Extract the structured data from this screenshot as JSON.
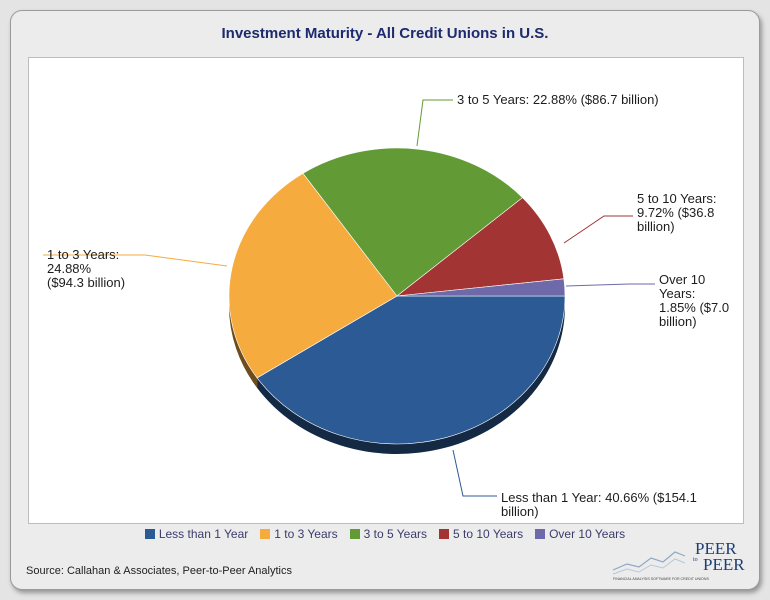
{
  "chart_data": {
    "type": "pie",
    "title": "Investment Maturity - All Credit Unions in U.S.",
    "series": [
      {
        "name": "Investment Maturity",
        "slices": [
          {
            "label": "Less than 1 Year",
            "percent": 40.66,
            "value_billion": 154.1,
            "color": "#2c5a94",
            "annotation": [
              "Less than 1 Year: 40.66% ($154.1",
              "billion)"
            ]
          },
          {
            "label": "1 to 3 Years",
            "percent": 24.88,
            "value_billion": 94.3,
            "color": "#f5ab3e",
            "annotation": [
              "1 to 3 Years:",
              "24.88%",
              "($94.3 billion)"
            ]
          },
          {
            "label": "3 to 5 Years",
            "percent": 22.88,
            "value_billion": 86.7,
            "color": "#629a36",
            "annotation": [
              "3 to 5 Years: 22.88% ($86.7 billion)"
            ]
          },
          {
            "label": "5 to 10 Years",
            "percent": 9.72,
            "value_billion": 36.8,
            "color": "#a23434",
            "annotation": [
              "5 to 10 Years:",
              "9.72% ($36.8",
              "billion)"
            ]
          },
          {
            "label": "Over 10 Years",
            "percent": 1.85,
            "value_billion": 7.0,
            "color": "#6e6aa9",
            "annotation": [
              "Over 10",
              "Years:",
              "1.85% ($7.0",
              "billion)"
            ]
          }
        ]
      }
    ],
    "legend": [
      "Less than 1 Year",
      "1 to 3 Years",
      "3 to 5 Years",
      "5 to 10 Years",
      "Over 10 Years"
    ],
    "legend_position": "bottom"
  },
  "source": "Source: Callahan & Associates, Peer-to-Peer Analytics",
  "logo": {
    "line1": "PEER",
    "line2": "to",
    "line3": "PEER",
    "tagline": "FINANCIAL ANALYSIS SOFTWARE FOR CREDIT UNIONS"
  }
}
